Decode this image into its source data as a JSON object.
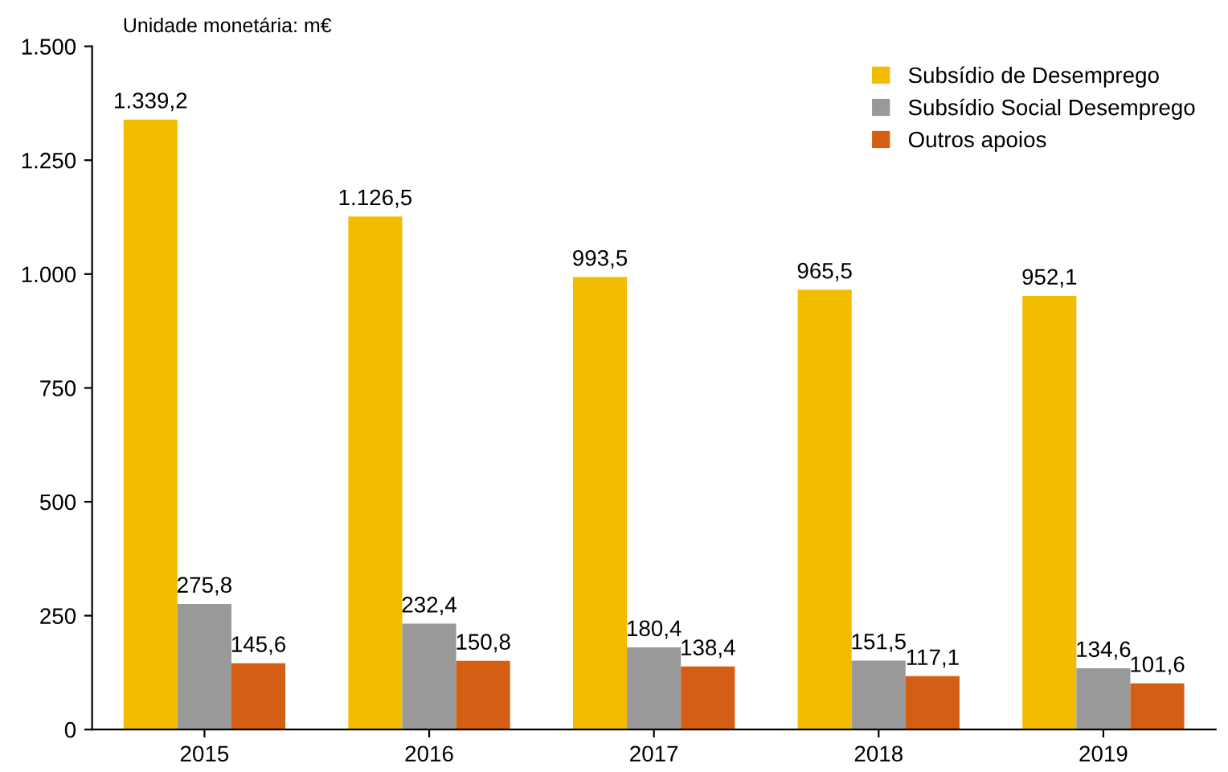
{
  "chart_data": {
    "type": "bar",
    "categories": [
      "2015",
      "2016",
      "2017",
      "2018",
      "2019"
    ],
    "series": [
      {
        "name": "Subsídio de Desemprego",
        "color": "#f2bc00",
        "values": [
          1339.2,
          1126.5,
          993.5,
          965.5,
          952.1
        ],
        "value_labels": [
          "1.339,2",
          "1.126,5",
          "993,5",
          "965,5",
          "952,1"
        ]
      },
      {
        "name": "Subsídio Social Desemprego",
        "color": "#999999",
        "values": [
          275.8,
          232.4,
          180.4,
          151.5,
          134.6
        ],
        "value_labels": [
          "275,8",
          "232,4",
          "180,4",
          "151,5",
          "134,6"
        ]
      },
      {
        "name": "Outros apoios",
        "color": "#d45f14",
        "values": [
          145.6,
          150.8,
          138.4,
          117.1,
          101.6
        ],
        "value_labels": [
          "145,6",
          "150,8",
          "138,4",
          "117,1",
          "101,6"
        ]
      }
    ],
    "ylim": [
      0,
      1500
    ],
    "yticks": [
      0,
      {
        "value": 250,
        "label": "250"
      },
      {
        "value": 500,
        "label": "500"
      },
      {
        "value": 750,
        "label": "750"
      },
      {
        "value": 1000,
        "label": "1.000"
      },
      {
        "value": 1250,
        "label": "1.250"
      },
      {
        "value": 1500,
        "label": "1.500"
      }
    ],
    "annotations": [
      "Unidade monetária: m€"
    ],
    "legend": "top right",
    "grid": false
  }
}
